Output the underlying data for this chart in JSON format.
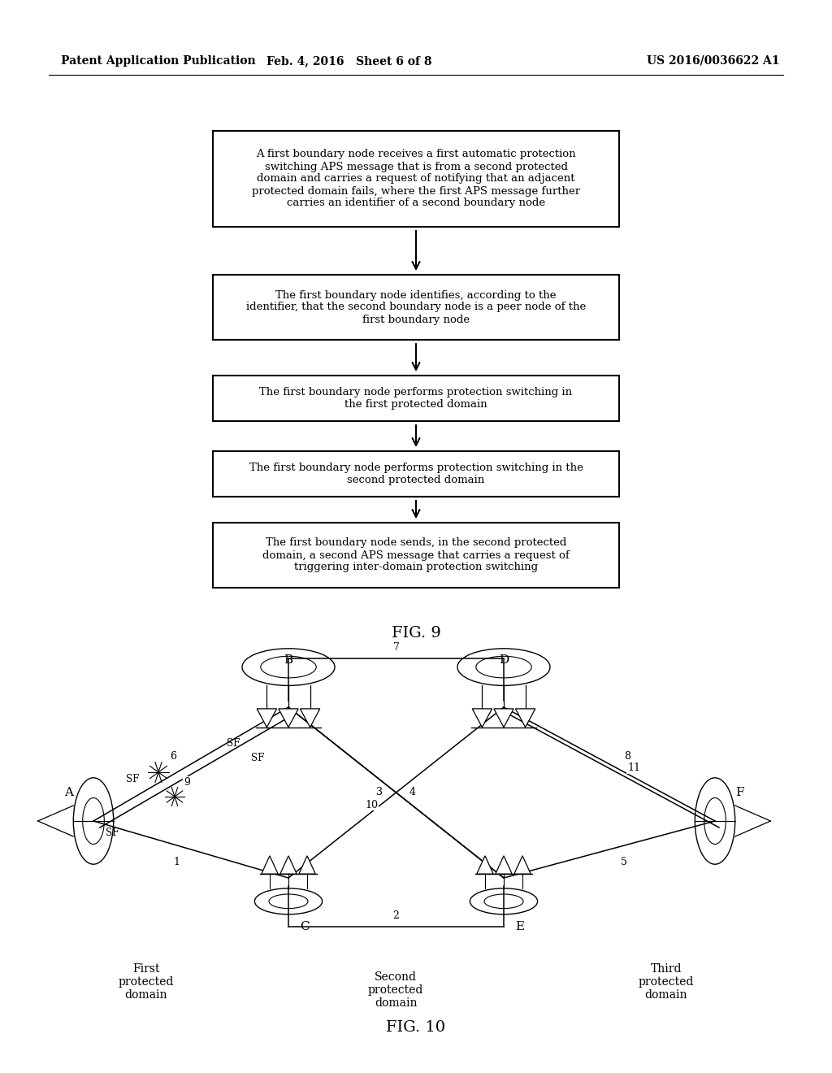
{
  "header_left": "Patent Application Publication",
  "header_mid": "Feb. 4, 2016   Sheet 6 of 8",
  "header_right": "US 2016/0036622 A1",
  "fig9_label": "FIG. 9",
  "fig10_label": "FIG. 10",
  "flowchart_boxes": [
    "A first boundary node receives a first automatic protection\nswitching APS message that is from a second protected\ndomain and carries a request of notifying that an adjacent\nprotected domain fails, where the first APS message further\ncarries an identifier of a second boundary node",
    "The first boundary node identifies, according to the\nidentifier, that the second boundary node is a peer node of the\nfirst boundary node",
    "The first boundary node performs protection switching in\nthe first protected domain",
    "The first boundary node performs protection switching in the\nsecond protected domain",
    "The first boundary node sends, in the second protected\ndomain, a second APS message that carries a request of\ntriggering inter-domain protection switching"
  ],
  "bg_color": "#ffffff",
  "text_color": "#000000"
}
